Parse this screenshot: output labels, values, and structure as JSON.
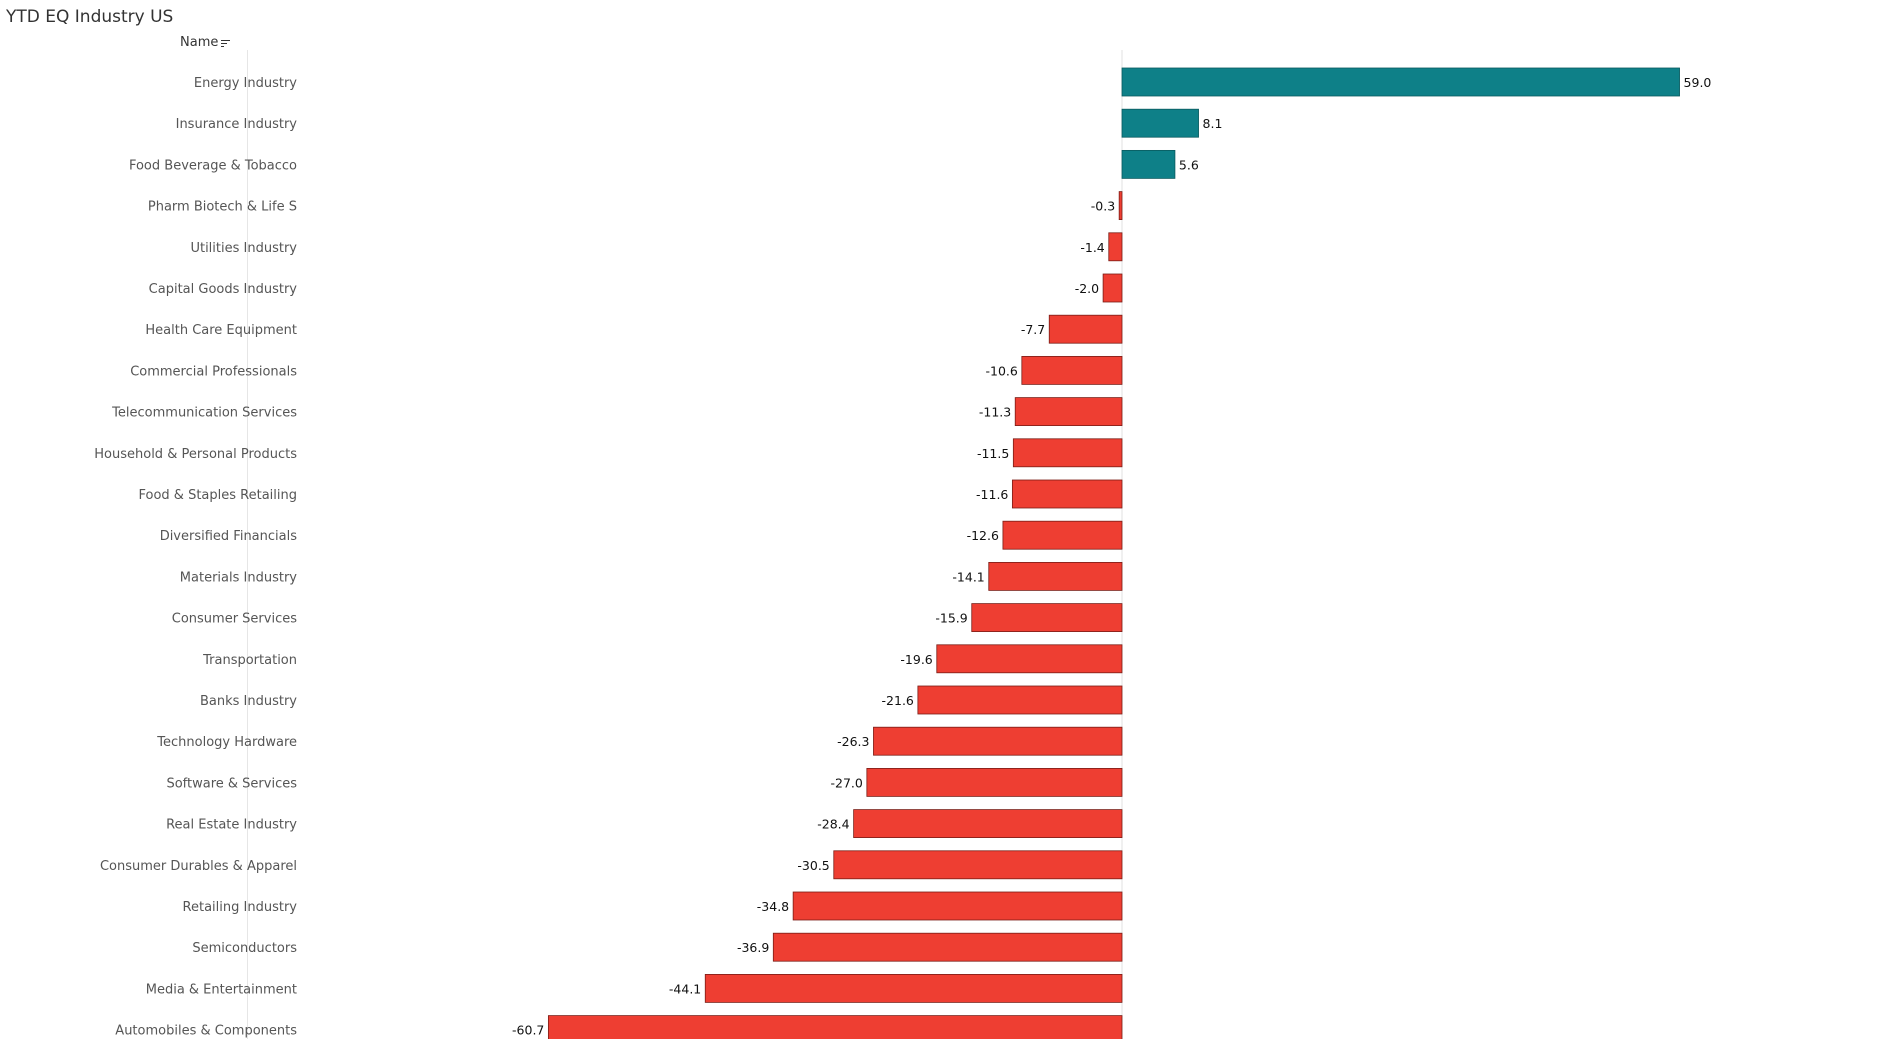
{
  "title": "YTD EQ Industry US",
  "column_header": {
    "label": "Name",
    "sort_icon": "sort-descending-icon"
  },
  "colors": {
    "positive": "#0E8088",
    "negative": "#EE3E32",
    "negative_stroke": "#7a1d16",
    "positive_stroke": "#0a5a5f"
  },
  "chart_data": {
    "type": "bar",
    "orientation": "horizontal",
    "title": "YTD EQ Industry US",
    "categories": [
      "Energy Industry",
      "Insurance Industry",
      "Food Beverage & Tobacco",
      "Pharm Biotech & Life S",
      "Utilities Industry",
      "Capital Goods Industry",
      "Health Care Equipment",
      "Commercial Professionals",
      "Telecommunication Services",
      "Household & Personal Products",
      "Food & Staples Retailing",
      "Diversified Financials",
      "Materials Industry",
      "Consumer Services",
      "Transportation",
      "Banks Industry",
      "Technology Hardware",
      "Software & Services",
      "Real Estate Industry",
      "Consumer Durables & Apparel",
      "Retailing Industry",
      "Semiconductors",
      "Media & Entertainment",
      "Automobiles & Components"
    ],
    "values": [
      59.0,
      8.1,
      5.6,
      -0.3,
      -1.4,
      -2.0,
      -7.7,
      -10.6,
      -11.3,
      -11.5,
      -11.6,
      -12.6,
      -14.1,
      -15.9,
      -19.6,
      -21.6,
      -26.3,
      -27.0,
      -28.4,
      -30.5,
      -34.8,
      -36.9,
      -44.1,
      -60.7
    ],
    "value_labels": [
      "59.0",
      "8.1",
      "5.6",
      "-0.3",
      "-1.4",
      "-2.0",
      "-7.7",
      "-10.6",
      "-11.3",
      "-11.5",
      "-11.6",
      "-12.6",
      "-14.1",
      "-15.9",
      "-19.6",
      "-21.6",
      "-26.3",
      "-27.0",
      "-28.4",
      "-30.5",
      "-34.8",
      "-36.9",
      "-44.1",
      "-60.7"
    ],
    "xlim": [
      -70.3,
      70.3
    ],
    "grid": false,
    "xlabel": "",
    "ylabel": ""
  }
}
